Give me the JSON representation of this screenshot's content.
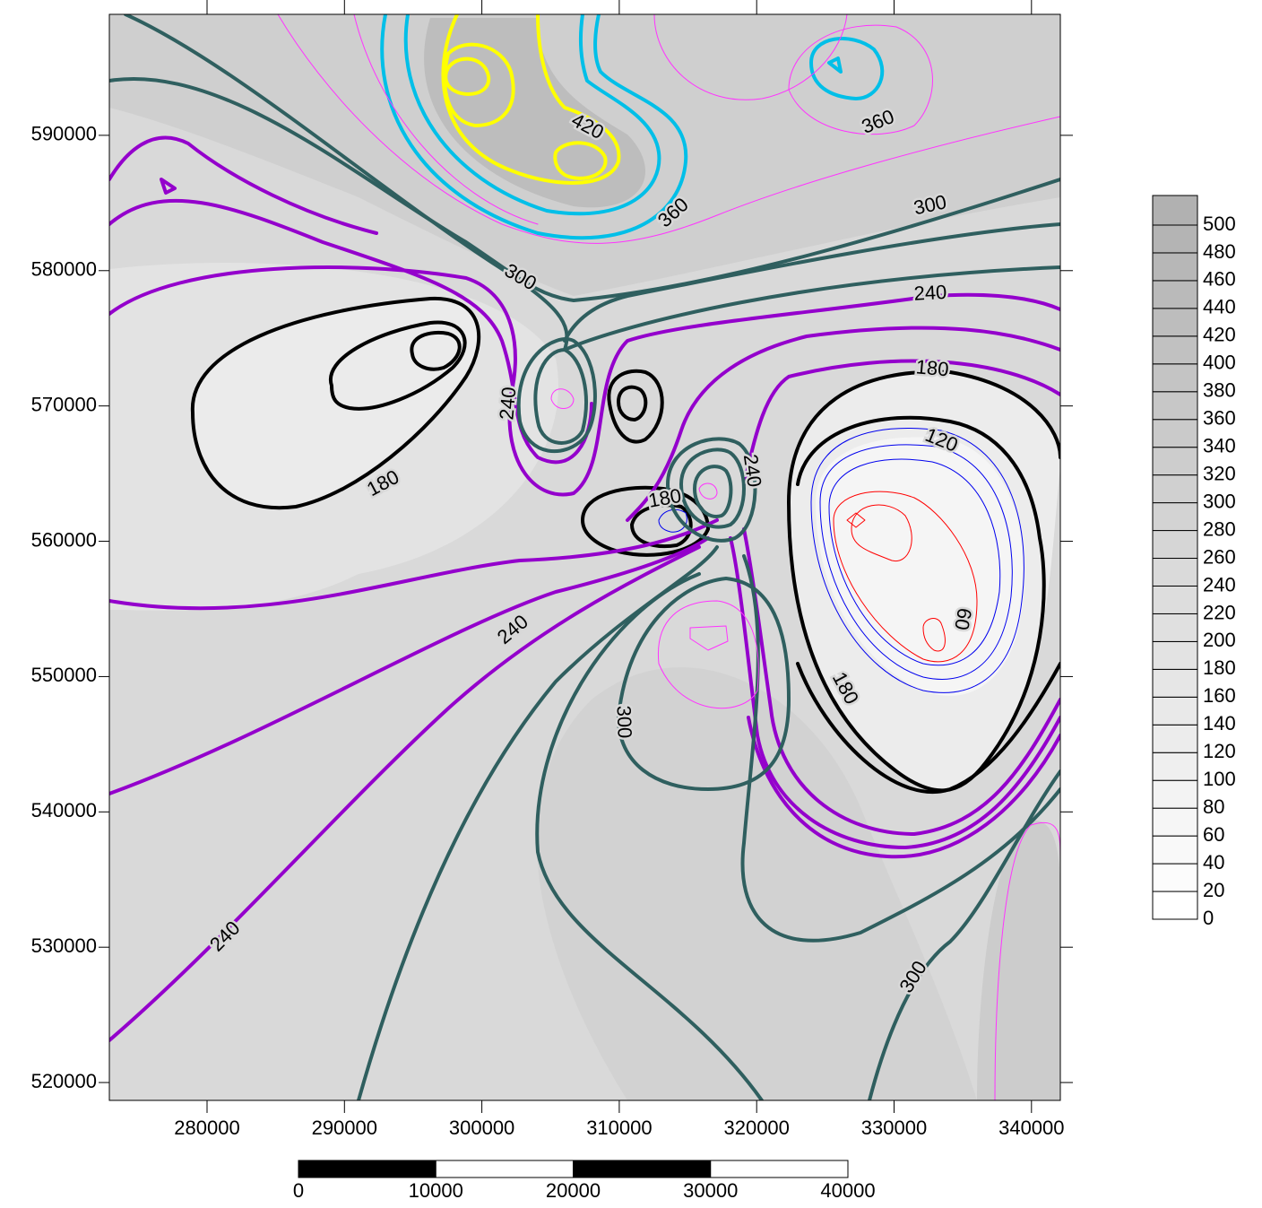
{
  "map": {
    "xlim": [
      272890,
      342100
    ],
    "ylim": [
      518680,
      598940
    ],
    "xticks": [
      280000,
      290000,
      300000,
      310000,
      320000,
      330000,
      340000
    ],
    "yticks": [
      520000,
      530000,
      540000,
      550000,
      560000,
      570000,
      580000,
      590000
    ],
    "contour_labels": [
      "420",
      "360",
      "360",
      "300",
      "300",
      "240",
      "180",
      "120",
      "240",
      "180",
      "60",
      "240",
      "300",
      "180",
      "240",
      "240",
      "300",
      "180"
    ]
  },
  "legend": {
    "levels": [
      0,
      20,
      40,
      60,
      80,
      100,
      120,
      140,
      160,
      180,
      200,
      220,
      240,
      260,
      280,
      300,
      320,
      340,
      360,
      380,
      400,
      420,
      440,
      460,
      480,
      500
    ]
  },
  "scale_bar": {
    "labels": [
      0,
      10000,
      20000,
      30000,
      40000
    ]
  }
}
